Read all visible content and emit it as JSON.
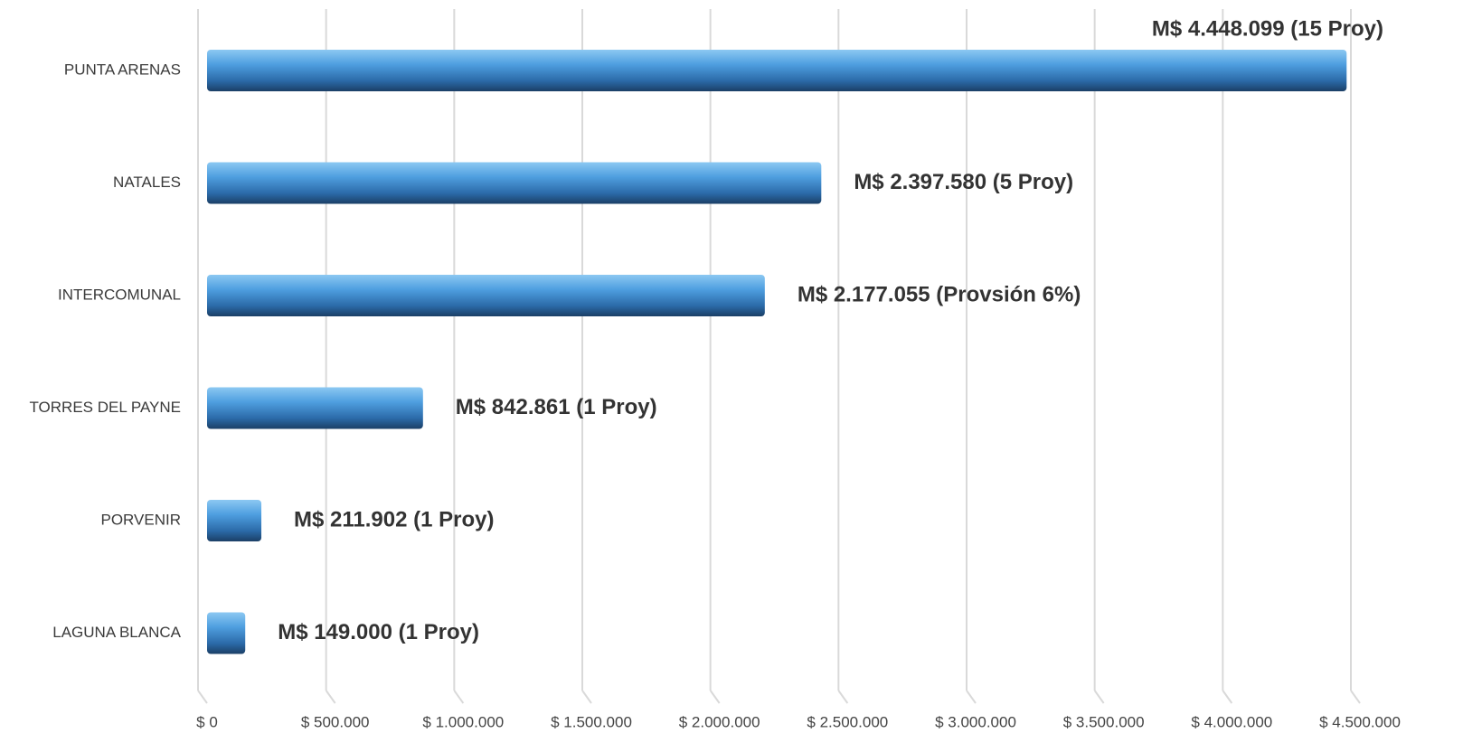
{
  "chart_data": {
    "type": "bar",
    "orientation": "horizontal",
    "categories": [
      "PUNTA ARENAS",
      "NATALES",
      "INTERCOMUNAL",
      "TORRES DEL PAYNE",
      "PORVENIR",
      "LAGUNA BLANCA"
    ],
    "values": [
      4448099,
      2397580,
      2177055,
      842861,
      211902,
      149000
    ],
    "value_labels": [
      "M$ 4.448.099 (15 Proy)",
      "M$ 2.397.580 (5 Proy)",
      "M$ 2.177.055 (Provsión 6%)",
      "M$ 842.861 (1 Proy)",
      "M$ 211.902 (1 Proy)",
      "M$ 149.000 (1 Proy)"
    ],
    "color": "#3d8fd6",
    "xlim": [
      0,
      4500000
    ],
    "xticks": [
      {
        "value": 0,
        "label": "$ 0"
      },
      {
        "value": 500000,
        "label": "$ 500.000"
      },
      {
        "value": 1000000,
        "label": "$ 1.000.000"
      },
      {
        "value": 1500000,
        "label": "$ 1.500.000"
      },
      {
        "value": 2000000,
        "label": "$ 2.000.000"
      },
      {
        "value": 2500000,
        "label": "$ 2.500.000"
      },
      {
        "value": 3000000,
        "label": "$ 3.000.000"
      },
      {
        "value": 3500000,
        "label": "$ 3.500.000"
      },
      {
        "value": 4000000,
        "label": "$ 4.000.000"
      },
      {
        "value": 4500000,
        "label": "$ 4.500.000"
      }
    ],
    "grid": true
  }
}
